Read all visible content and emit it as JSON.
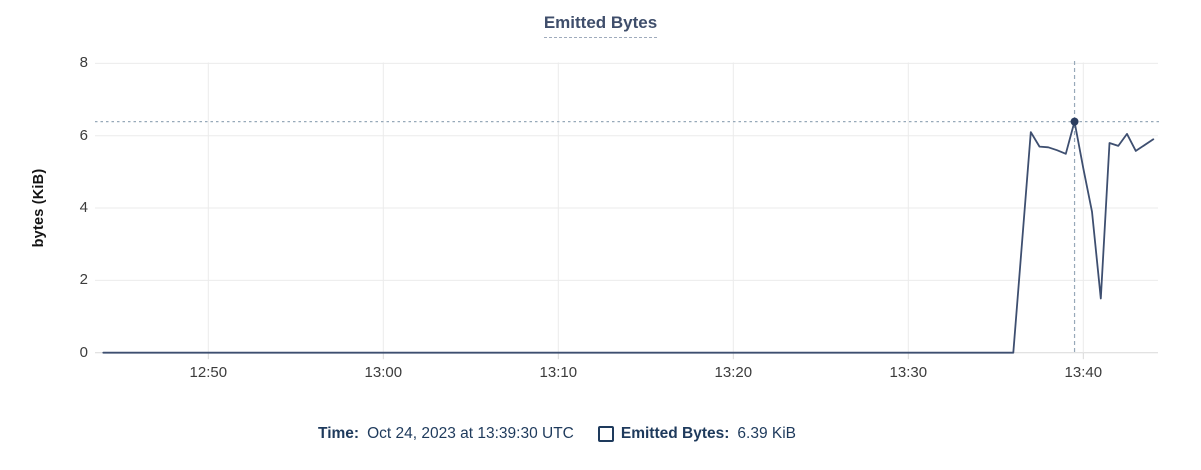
{
  "title": "Emitted Bytes",
  "colors": {
    "series_line": "#3e4f70",
    "highlight_dot": "#2b3d5f",
    "crosshair": "#97a9b9",
    "gridline": "#ebebeb",
    "baseline": "#d9d9d9",
    "title_text": "#3f4e6b",
    "legend_text": "#1e3a5c"
  },
  "chart_data": {
    "type": "line",
    "title": "Emitted Bytes",
    "xlabel": "",
    "ylabel": "bytes (KiB)",
    "ylim": [
      0,
      8
    ],
    "x_range": [
      "12:44:00",
      "13:44:15"
    ],
    "grid": true,
    "legend_position": "bottom",
    "y_ticks": [
      0,
      2,
      4,
      6,
      8
    ],
    "x_ticks": [
      {
        "label": "12:50",
        "m": -50
      },
      {
        "label": "13:00",
        "m": -40
      },
      {
        "label": "13:10",
        "m": -30
      },
      {
        "label": "13:20",
        "m": -20
      },
      {
        "label": "13:30",
        "m": -10
      },
      {
        "label": "13:40",
        "m": 0
      }
    ],
    "series": [
      {
        "name": "Emitted Bytes",
        "unit": "KiB",
        "points": [
          {
            "t": "12:44:00",
            "m": -56,
            "v": 0
          },
          {
            "t": "13:36:00",
            "m": -4,
            "v": 0
          },
          {
            "t": "13:37:00",
            "m": -3,
            "v": 6.1
          },
          {
            "t": "13:37:30",
            "m": -2.5,
            "v": 5.7
          },
          {
            "t": "13:38:00",
            "m": -2,
            "v": 5.68
          },
          {
            "t": "13:38:30",
            "m": -1.5,
            "v": 5.6
          },
          {
            "t": "13:39:00",
            "m": -1,
            "v": 5.5
          },
          {
            "t": "13:39:30",
            "m": -0.5,
            "v": 6.39
          },
          {
            "t": "13:40:00",
            "m": 0,
            "v": 5.1
          },
          {
            "t": "13:40:30",
            "m": 0.5,
            "v": 3.9
          },
          {
            "t": "13:41:00",
            "m": 1,
            "v": 1.5
          },
          {
            "t": "13:41:30",
            "m": 1.5,
            "v": 5.8
          },
          {
            "t": "13:42:00",
            "m": 2,
            "v": 5.72
          },
          {
            "t": "13:42:30",
            "m": 2.5,
            "v": 6.05
          },
          {
            "t": "13:43:00",
            "m": 3,
            "v": 5.58
          },
          {
            "t": "13:44:00",
            "m": 4,
            "v": 5.9
          }
        ]
      }
    ],
    "highlight": {
      "t": "13:39:30",
      "m": -0.5,
      "v": 6.39
    }
  },
  "tooltip": {
    "time_label": "Time:",
    "time_value": "Oct 24, 2023 at 13:39:30 UTC",
    "series_label": "Emitted Bytes:",
    "series_value": "6.39 KiB"
  }
}
